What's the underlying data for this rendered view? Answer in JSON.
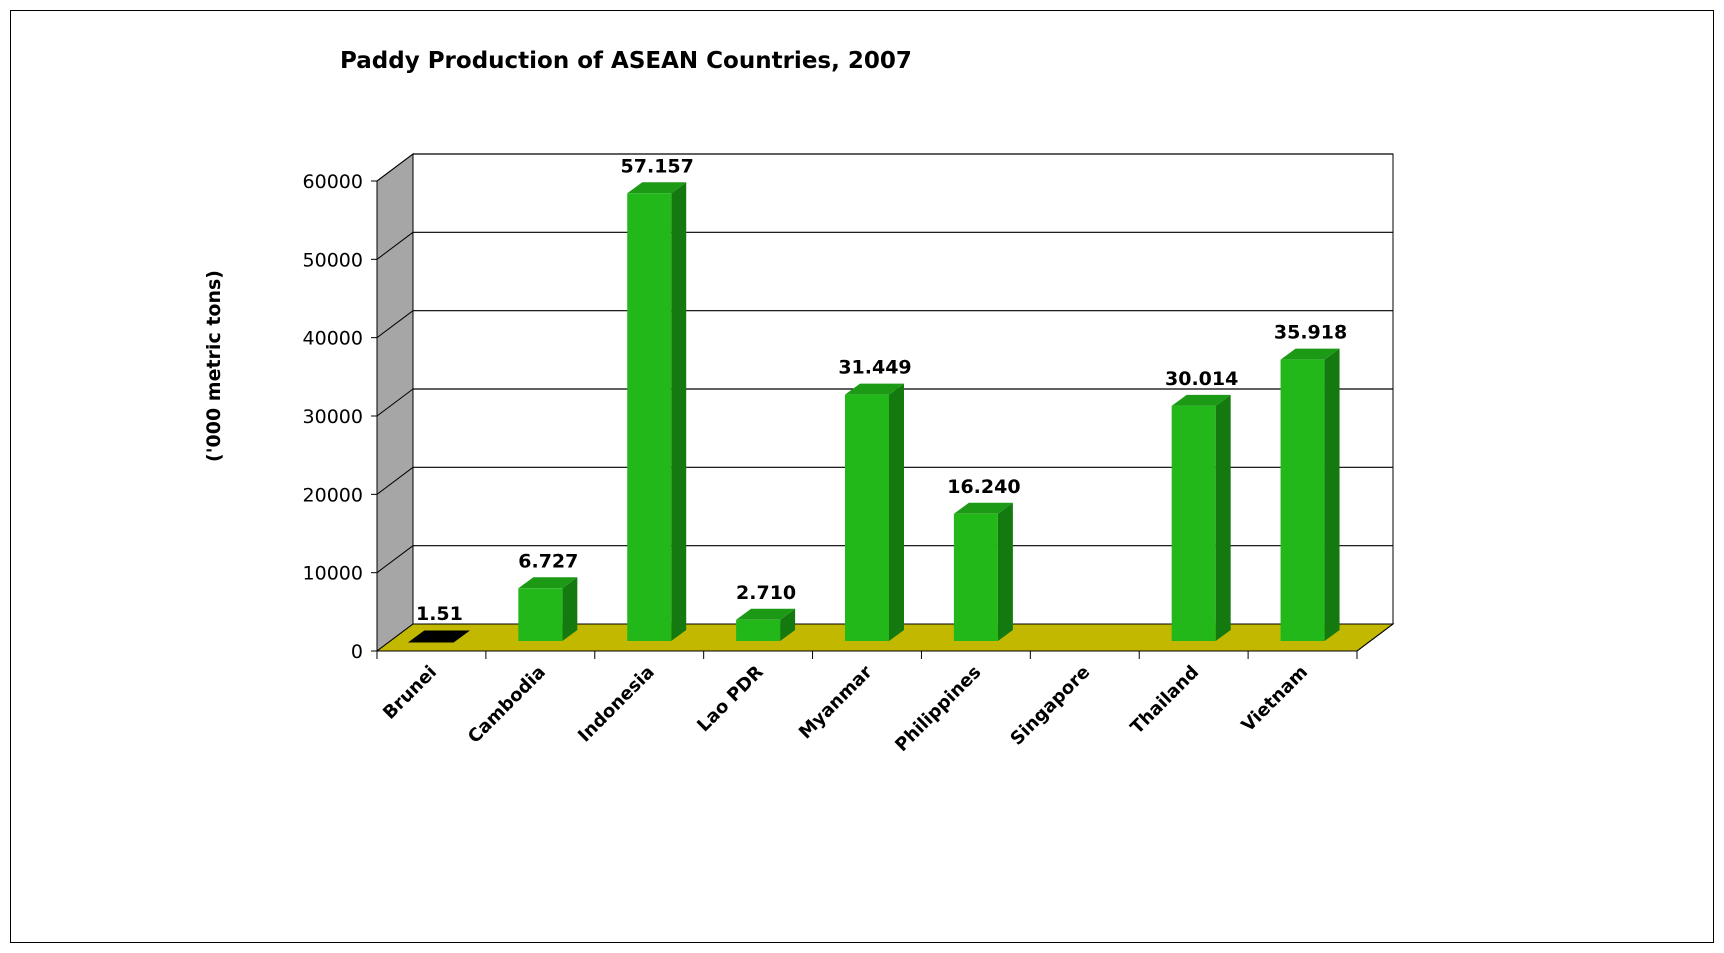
{
  "chart_data": {
    "type": "bar",
    "title": "Paddy Production of ASEAN Countries, 2007",
    "xlabel": "",
    "ylabel": "('000 metric tons)",
    "ylim": [
      0,
      60000
    ],
    "yticks": [
      0,
      10000,
      20000,
      30000,
      40000,
      50000,
      60000
    ],
    "yticklabels": [
      "0",
      "10000",
      "20000",
      "30000",
      "40000",
      "50000",
      "60000"
    ],
    "grid": true,
    "legend": "none",
    "categories": [
      "Brunei",
      "Cambodia",
      "Indonesia",
      "Lao PDR",
      "Myanmar",
      "Philippines",
      "Singapore",
      "Thailand",
      "Vietnam"
    ],
    "values": [
      1.51,
      6727,
      57157,
      2710,
      31449,
      16240,
      0,
      30014,
      35918
    ],
    "data_labels": [
      "1.51",
      "6.727",
      "57.157",
      "2.710",
      "31.449",
      "16.240",
      "",
      "30.014",
      "35.918"
    ],
    "colors": {
      "bar_front": "#22b81a",
      "bar_side": "#147a0f",
      "bar_top": "#1c9a15",
      "zero_bar": "#000000",
      "floor": "#c2b800",
      "side_wall": "#a6a6a6"
    }
  }
}
